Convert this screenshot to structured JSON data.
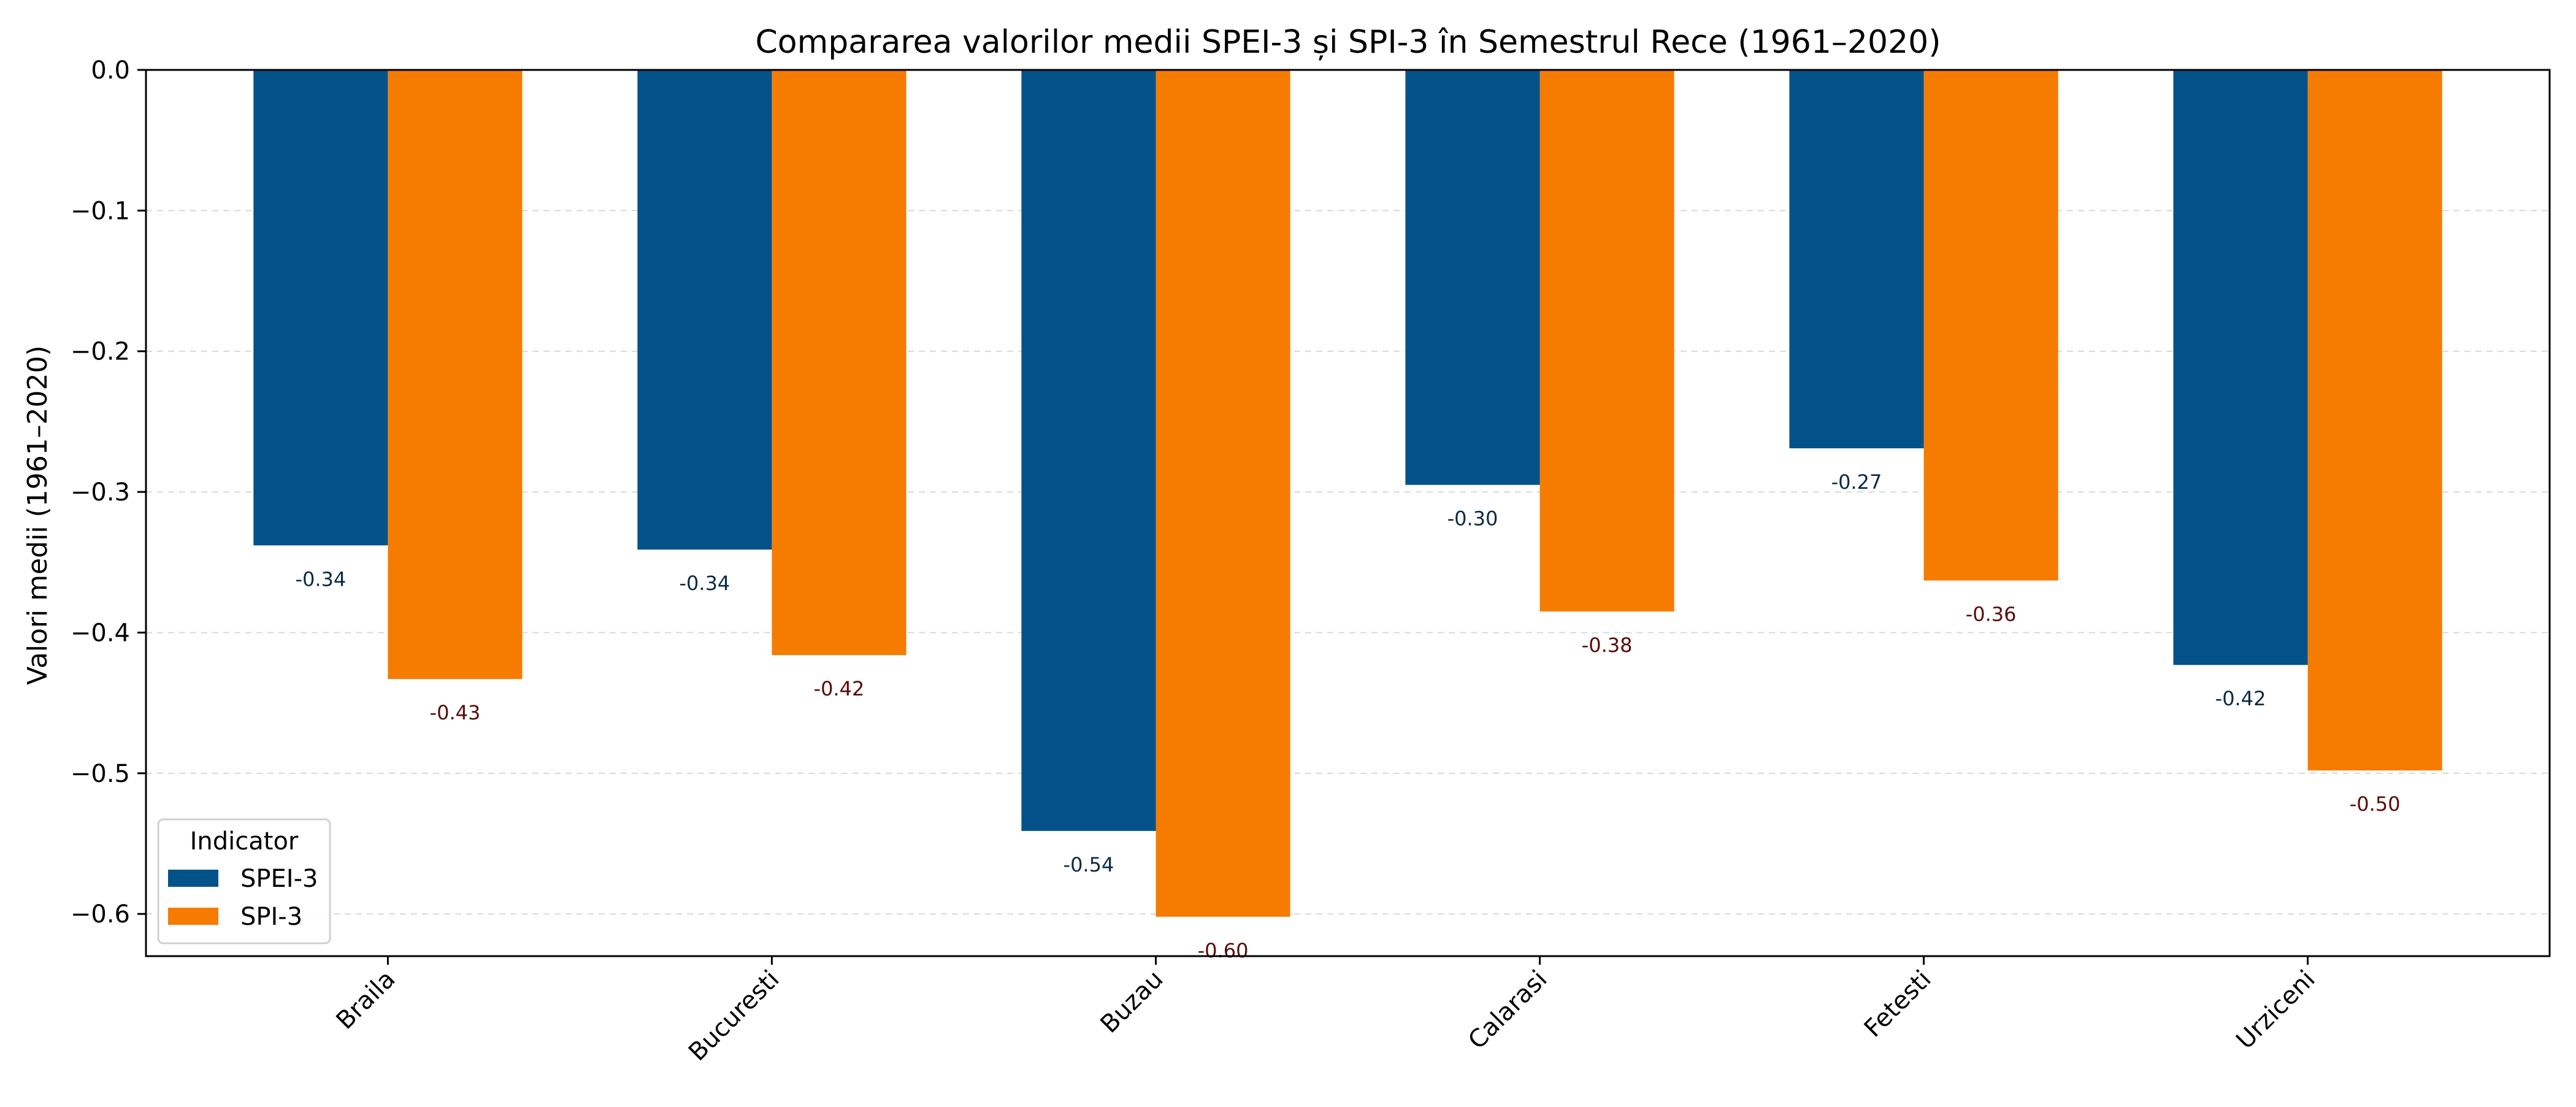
{
  "chart_data": {
    "type": "bar",
    "title": "Compararea valorilor medii SPEI-3 și SPI-3 în Semestrul Rece (1961–2020)",
    "xlabel": "",
    "ylabel": "Valori medii (1961–2020)",
    "ylim": [
      -0.63,
      0.0
    ],
    "yticks": [
      0.0,
      -0.1,
      -0.2,
      -0.3,
      -0.4,
      -0.5,
      -0.6
    ],
    "ytick_labels": [
      "0.0",
      "−0.1",
      "−0.2",
      "−0.3",
      "−0.4",
      "−0.5",
      "−0.6"
    ],
    "categories": [
      "Braila",
      "Bucuresti",
      "Buzau",
      "Calarasi",
      "Fetesti",
      "Urziceni"
    ],
    "series": [
      {
        "name": "SPEI-3",
        "values": [
          -0.338,
          -0.341,
          -0.541,
          -0.295,
          -0.269,
          -0.423
        ],
        "labels": [
          "-0.34",
          "-0.34",
          "-0.54",
          "-0.30",
          "-0.27",
          "-0.42"
        ],
        "color": "#03528a",
        "label_color": "#0b2a45"
      },
      {
        "name": "SPI-3",
        "values": [
          -0.433,
          -0.416,
          -0.602,
          -0.385,
          -0.363,
          -0.498
        ],
        "labels": [
          "-0.43",
          "-0.42",
          "-0.60",
          "-0.38",
          "-0.36",
          "-0.50"
        ],
        "color": "#f57c00",
        "label_color": "#5a0a0a"
      }
    ],
    "legend": {
      "title": "Indicator",
      "placement": "bottom-left"
    },
    "grid": {
      "y": true,
      "x": false
    }
  }
}
